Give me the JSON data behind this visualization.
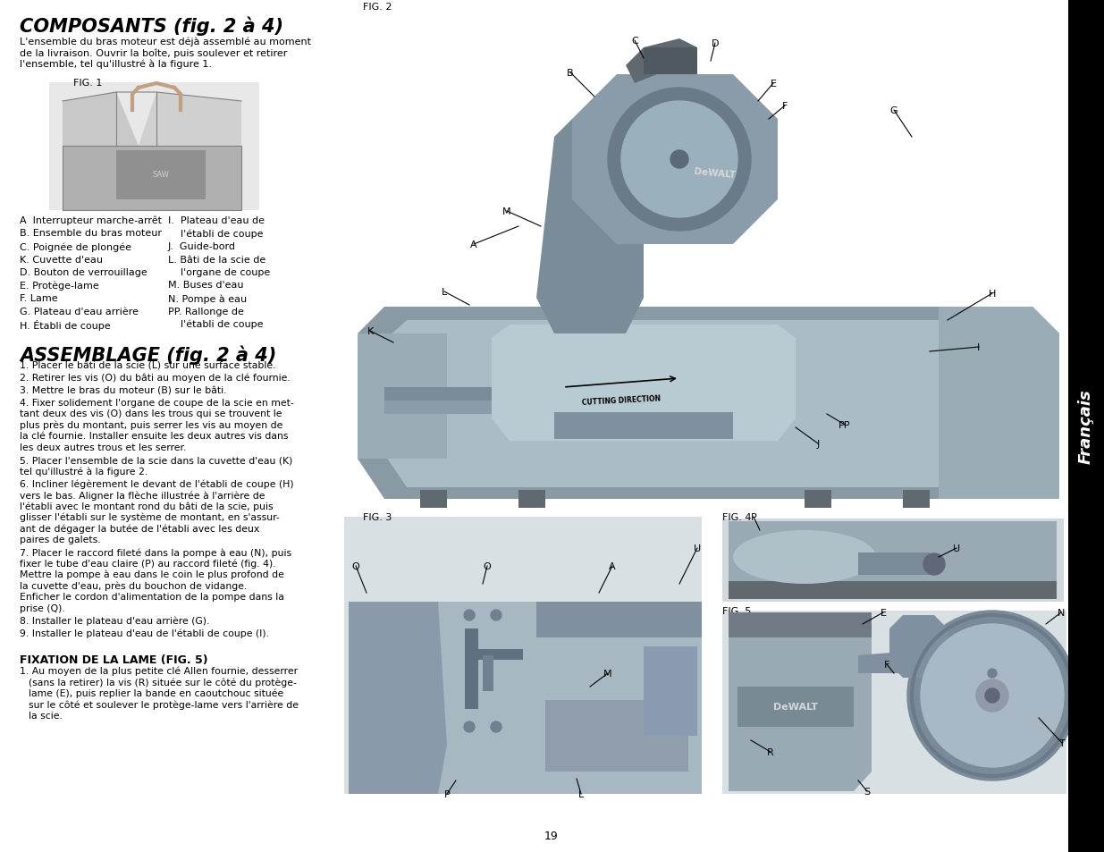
{
  "page_bg": "#ffffff",
  "sidebar_bg": "#000000",
  "sidebar_text": "Français",
  "sidebar_text_color": "#ffffff",
  "title1": "COMPOSANTS (fig. 2 à 4)",
  "title2": "ASSEMBLAGE (fig. 2 à 4)",
  "title3_bold": "FIXATION DE LA LAME (FIG. 5)",
  "intro_text": "L'ensemble du bras moteur est déjà assemblé au moment\nde la livraison. Ouvrir la boîte, puis soulever et retirer\nl'ensemble, tel qu'illustré à la figure 1.",
  "fig1_label": "FIG. 1",
  "fig2_label": "FIG. 2",
  "fig3_label": "FIG. 3",
  "fig4_label": "FIG. 4",
  "fig5_label": "FIG. 5",
  "components_col1": [
    "A  Interrupteur marche-arrêt",
    "B. Ensemble du bras moteur",
    "C. Poignée de plongée",
    "K. Cuvette d'eau",
    "D. Bouton de verrouillage",
    "E. Protège-lame",
    "F. Lame",
    "G. Plateau d'eau arrière",
    "H. Établi de coupe"
  ],
  "components_col2": [
    "I.  Plateau d'eau de",
    "    l'établi de coupe",
    "J.  Guide-bord",
    "L. Bâti de la scie de",
    "    l'organe de coupe",
    "M. Buses d'eau",
    "N. Pompe à eau",
    "PP. Rallonge de",
    "    l'établi de coupe"
  ],
  "assembly_steps": [
    "1. Placer le bâti de la scie (L) sur une surface stable.",
    "2. Retirer les vis (O) du bâti au moyen de la clé fournie.",
    "3. Mettre le bras du moteur (B) sur le bâti.",
    "4. Fixer solidement l'organe de coupe de la scie en met-\n    tant deux des vis (O) dans les trous qui se trouvent le\n    plus près du montant, puis serrer les vis au moyen de\n    la clé fournie. Installer ensuite les deux autres vis dans\n    les deux autres trous et les serrer.",
    "5. Placer l'ensemble de la scie dans la cuvette d'eau (K)\n    tel qu'illustré à la figure 2.",
    "6. Incliner légèrement le devant de l'établi de coupe (H)\n    vers le bas. Aligner la flèche illustrée à l'arrière de\n    l'établi avec le montant rond du bâti de la scie, puis\n    glisser l'établi sur le système de montant, en s'assur-\n    ant de dégager la butée de l'établi avec les deux\n    paires de galets.",
    "7. Placer le raccord fileté dans la pompe à eau (N), puis\n    fixer le tube d'eau claire (P) au raccord fileté (fig. 4).\n    Mettre la pompe à eau dans le coin le plus profond de\n    la cuvette d'eau, près du bouchon de vidange.\n    Enficher le cordon d'alimentation de la pompe dans la\n    prise (Q).",
    "8. Installer le plateau d'eau arrière (G).",
    "9. Installer le plateau d'eau de l'établi de coupe (I)."
  ],
  "fixation_step": "1. Au moyen de la plus petite clé Allen fournie, desserrer\n    (sans la retirer) la vis (R) située sur le côté du protège-\n    lame (E), puis replier la bande en caoutchouc située\n    sur le côté et soulever le protège-lame vers l'arrière de\n    la scie.",
  "page_number": "19"
}
